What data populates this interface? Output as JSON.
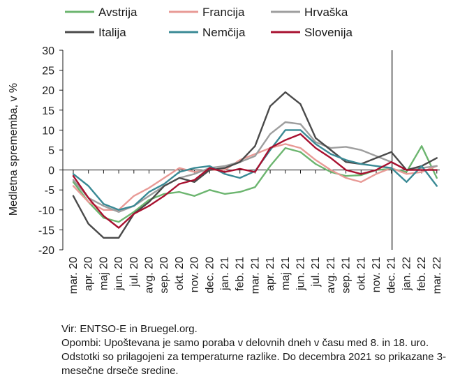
{
  "chart_data": {
    "type": "line",
    "ylabel": "Medletna sprememba, v %",
    "ylim": [
      -20,
      30
    ],
    "yticks": [
      -20,
      -15,
      -10,
      -5,
      0,
      5,
      10,
      15,
      20,
      25,
      30
    ],
    "categories": [
      "mar. 20",
      "apr. 20",
      "maj 20",
      "jun. 20",
      "jul. 20",
      "avg. 20",
      "sep. 20",
      "okt. 20",
      "nov. 20",
      "dec. 20",
      "jan. 21",
      "feb. 21",
      "mar. 21",
      "apr. 21",
      "maj 21",
      "jun. 21",
      "jul. 21",
      "avg. 21",
      "sep. 21",
      "okt. 21",
      "nov. 21",
      "dec. 21",
      "jan. 22",
      "feb. 22",
      "mar. 22"
    ],
    "vertical_marker_after": "dec. 21",
    "grid": false,
    "legend_position": "top",
    "series": [
      {
        "name": "Avstrija",
        "color": "#6cb56f",
        "values": [
          -3,
          -8,
          -12,
          -13,
          -10.5,
          -7.5,
          -6,
          -5.5,
          -6.5,
          -5,
          -6,
          -5.5,
          -4.3,
          1,
          5.5,
          4.5,
          1.5,
          -0.5,
          -1.5,
          -1.3,
          0,
          0.3,
          -0.5,
          6,
          -2
        ]
      },
      {
        "name": "Francija",
        "color": "#e89a96",
        "values": [
          -4,
          -8,
          -10,
          -10,
          -6.5,
          -4.5,
          -2,
          0.5,
          -0.5,
          0,
          0,
          2.5,
          4,
          5.5,
          6.5,
          5.5,
          2.5,
          0,
          -2,
          -3,
          -1,
          0.5,
          -1,
          -0.5,
          1
        ]
      },
      {
        "name": "Hrvaška",
        "color": "#9e9e9e",
        "values": [
          -2.5,
          -7,
          -9,
          -10.5,
          -9,
          -6.5,
          -4,
          -2,
          -1,
          0.5,
          1,
          2,
          3.5,
          9,
          12,
          11.5,
          7,
          5.5,
          5.8,
          5,
          3.5,
          2,
          0,
          0.5,
          1
        ]
      },
      {
        "name": "Italija",
        "color": "#4a4a4a",
        "values": [
          -6.5,
          -13.5,
          -17,
          -17,
          -11,
          -8,
          -4,
          -2,
          -3,
          0,
          0.5,
          2,
          6,
          16,
          19.5,
          16.5,
          8,
          5,
          2,
          1.5,
          3,
          4.5,
          0,
          1,
          3
        ]
      },
      {
        "name": "Nemčija",
        "color": "#3a8a95",
        "values": [
          -1,
          -4,
          -8.5,
          -10,
          -9,
          -5.5,
          -3.5,
          -0.5,
          0.5,
          1,
          -1,
          -2,
          -0.3,
          5,
          10,
          10,
          6.5,
          4,
          2.5,
          1.5,
          1,
          0.5,
          -3,
          1,
          -4
        ]
      },
      {
        "name": "Slovenija",
        "color": "#a8102f",
        "values": [
          -1.5,
          -7,
          -11.5,
          -14.5,
          -11,
          -9,
          -6.5,
          -3.5,
          -2.5,
          0.5,
          -0.5,
          0.3,
          -0.5,
          5.5,
          7.5,
          9,
          5.5,
          3,
          0,
          -1,
          0,
          2,
          0,
          0,
          0
        ]
      }
    ]
  },
  "notes": {
    "source": "Vir: ENTSO-E in Bruegel.org.",
    "remarks": "Opombi: Upoštevana je samo poraba v delovnih dneh v času med 8. in 18. uro. Odstotki so prilagojeni za temperaturne razlike. Do decembra 2021 so prikazane 3-mesečne drseče sredine."
  }
}
